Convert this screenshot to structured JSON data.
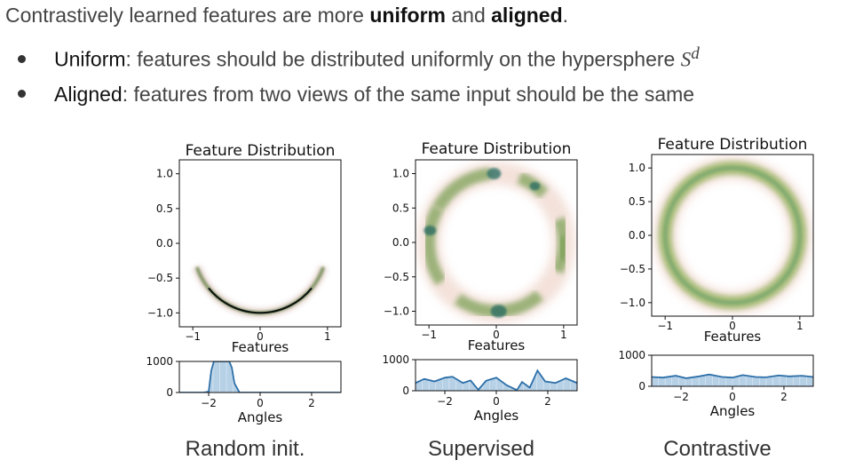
{
  "headline": {
    "prefix": "Contrastively learned features are more ",
    "word1": "uniform",
    "mid": " and ",
    "word2": "aligned",
    "suffix": "."
  },
  "bullets": [
    {
      "keyword": "Uniform",
      "text": ": features should be distributed uniformly on the hypersphere ",
      "math": "S",
      "sup": "d"
    },
    {
      "keyword": "Aligned",
      "text": ": features from two views of the same input should be the same"
    }
  ],
  "chart_data": [
    {
      "type": "heatmap",
      "title": "Feature Distribution",
      "xlabel": "Features",
      "ylabel": "",
      "xticks": [
        -1,
        0,
        1
      ],
      "yticks": [
        1.0,
        0.5,
        0.0,
        -0.5,
        -1.0
      ],
      "xlim": [
        -1.2,
        1.2
      ],
      "ylim": [
        -1.2,
        1.2
      ],
      "caption": "Random init.",
      "arc_degrees": [
        200,
        340
      ],
      "histogram": {
        "type": "area",
        "xlabel": "Angles",
        "xticks": [
          -2,
          0,
          2
        ],
        "yticks": [
          0,
          1000
        ],
        "xlim": [
          -3.14,
          3.14
        ],
        "ylim": [
          0,
          1000
        ],
        "x": [
          -3.14,
          -2.2,
          -2.0,
          -1.9,
          -1.8,
          -1.6,
          -1.4,
          -1.2,
          -1.1,
          -1.0,
          -0.8,
          3.14
        ],
        "y": [
          0,
          0,
          30,
          700,
          1000,
          1000,
          1000,
          1000,
          800,
          300,
          0,
          0
        ]
      }
    },
    {
      "type": "heatmap",
      "title": "Feature Distribution",
      "xlabel": "Features",
      "ylabel": "",
      "xticks": [
        -1,
        0,
        1
      ],
      "yticks": [
        1.0,
        0.5,
        0.0,
        -0.5,
        -1.0
      ],
      "xlim": [
        -1.2,
        1.2
      ],
      "ylim": [
        -1.2,
        1.2
      ],
      "caption": "Supervised",
      "histogram": {
        "type": "area",
        "xlabel": "Angles",
        "xticks": [
          -2,
          0,
          2
        ],
        "yticks": [
          0,
          1000
        ],
        "xlim": [
          -3.14,
          3.14
        ],
        "ylim": [
          0,
          1000
        ],
        "x": [
          -3.14,
          -2.8,
          -2.4,
          -2.0,
          -1.7,
          -1.3,
          -1.0,
          -0.7,
          -0.4,
          0.0,
          0.4,
          0.8,
          1.0,
          1.3,
          1.6,
          1.9,
          2.3,
          2.7,
          3.14
        ],
        "y": [
          250,
          380,
          300,
          420,
          450,
          250,
          330,
          30,
          320,
          420,
          180,
          20,
          280,
          100,
          650,
          300,
          250,
          400,
          250
        ]
      }
    },
    {
      "type": "heatmap",
      "title": "Feature Distribution",
      "xlabel": "Features",
      "ylabel": "",
      "xticks": [
        -1,
        0,
        1
      ],
      "yticks": [
        1.0,
        0.5,
        0.0,
        -0.5,
        -1.0
      ],
      "xlim": [
        -1.2,
        1.2
      ],
      "ylim": [
        -1.2,
        1.2
      ],
      "caption": "Contrastive",
      "histogram": {
        "type": "area",
        "xlabel": "Angles",
        "xticks": [
          -2,
          0,
          2
        ],
        "yticks": [
          0,
          1000
        ],
        "xlim": [
          -3.14,
          3.14
        ],
        "ylim": [
          0,
          1000
        ],
        "x": [
          -3.14,
          -2.7,
          -2.2,
          -1.8,
          -1.3,
          -0.9,
          -0.4,
          0.0,
          0.4,
          0.9,
          1.3,
          1.8,
          2.2,
          2.7,
          3.14
        ],
        "y": [
          300,
          280,
          340,
          260,
          320,
          380,
          300,
          280,
          360,
          300,
          290,
          350,
          320,
          340,
          300
        ]
      }
    }
  ]
}
